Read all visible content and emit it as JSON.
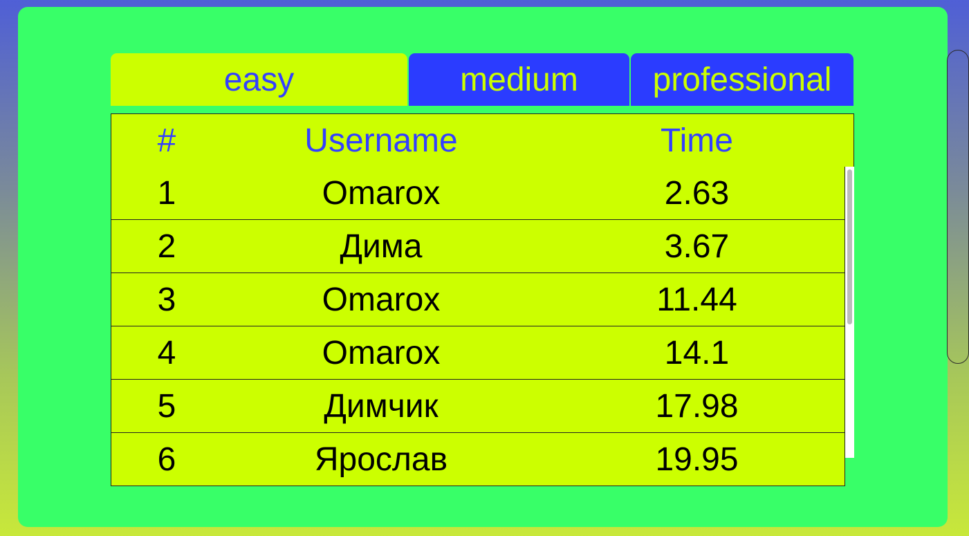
{
  "tabs": [
    {
      "label": "easy",
      "selected": true
    },
    {
      "label": "medium",
      "selected": false
    },
    {
      "label": "professional",
      "selected": false
    }
  ],
  "table": {
    "headers": {
      "num": "#",
      "username": "Username",
      "time": "Time"
    },
    "rows": [
      {
        "num": "1",
        "username": "Omarox",
        "time": "2.63"
      },
      {
        "num": "2",
        "username": "Дима",
        "time": "3.67"
      },
      {
        "num": "3",
        "username": "Omarox",
        "time": "11.44"
      },
      {
        "num": "4",
        "username": "Omarox",
        "time": "14.1"
      },
      {
        "num": "5",
        "username": "Димчик",
        "time": "17.98"
      },
      {
        "num": "6",
        "username": "Ярослав",
        "time": "19.95"
      }
    ]
  },
  "colors": {
    "panel": "#38ff68",
    "row_background": "#ccff00",
    "accent_blue": "#2b3cff"
  }
}
